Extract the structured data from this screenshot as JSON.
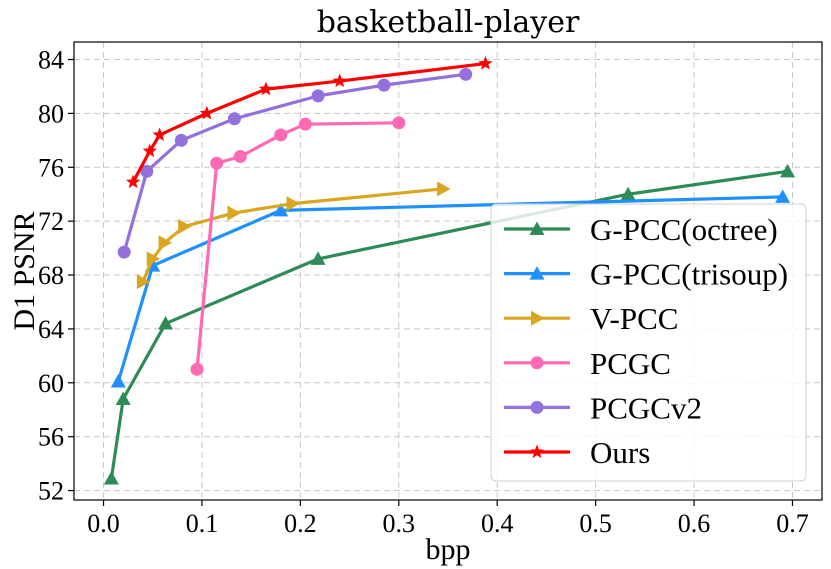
{
  "chart_data": {
    "type": "line",
    "title": "basketball-player",
    "xlabel": "bpp",
    "ylabel": "D1 PSNR",
    "xlim": [
      -0.03,
      0.73
    ],
    "ylim": [
      51.3,
      85.3
    ],
    "xticks": [
      0.0,
      0.1,
      0.2,
      0.3,
      0.4,
      0.5,
      0.6,
      0.7
    ],
    "xtick_labels": [
      "0.0",
      "0.1",
      "0.2",
      "0.3",
      "0.4",
      "0.5",
      "0.6",
      "0.7"
    ],
    "yticks": [
      52,
      56,
      60,
      64,
      68,
      72,
      76,
      80,
      84
    ],
    "ytick_labels": [
      "52",
      "56",
      "60",
      "64",
      "68",
      "72",
      "76",
      "80",
      "84"
    ],
    "grid": true,
    "legend_position": "lower-right",
    "series": [
      {
        "name": "G-PCC(octree)",
        "color": "#2e8b57",
        "marker": "triangle-up",
        "x": [
          0.008,
          0.02,
          0.063,
          0.218,
          0.533,
          0.695
        ],
        "y": [
          52.9,
          58.8,
          64.4,
          69.2,
          74.0,
          75.7
        ]
      },
      {
        "name": "G-PCC(trisoup)",
        "color": "#1e90ff",
        "marker": "triangle-up",
        "x": [
          0.015,
          0.05,
          0.18,
          0.69
        ],
        "y": [
          60.1,
          68.7,
          72.8,
          73.8
        ]
      },
      {
        "name": "V-PCC",
        "color": "#daa520",
        "marker": "triangle-right",
        "x": [
          0.04,
          0.05,
          0.062,
          0.082,
          0.132,
          0.192,
          0.345
        ],
        "y": [
          67.5,
          69.2,
          70.4,
          71.6,
          72.6,
          73.3,
          74.4
        ]
      },
      {
        "name": "PCGC",
        "color": "#ff69b4",
        "marker": "circle",
        "x": [
          0.095,
          0.115,
          0.139,
          0.18,
          0.205,
          0.3
        ],
        "y": [
          61.0,
          76.3,
          76.8,
          78.4,
          79.2,
          79.3
        ]
      },
      {
        "name": "PCGCv2",
        "color": "#9370db",
        "marker": "circle",
        "x": [
          0.021,
          0.044,
          0.079,
          0.133,
          0.218,
          0.285,
          0.368
        ],
        "y": [
          69.7,
          75.7,
          78.0,
          79.6,
          81.3,
          82.1,
          82.9
        ]
      },
      {
        "name": "Ours",
        "color": "#ff0000",
        "marker": "star",
        "x": [
          0.03,
          0.047,
          0.057,
          0.105,
          0.165,
          0.24,
          0.388
        ],
        "y": [
          74.9,
          77.2,
          78.4,
          80.0,
          81.8,
          82.4,
          83.7
        ]
      }
    ]
  }
}
